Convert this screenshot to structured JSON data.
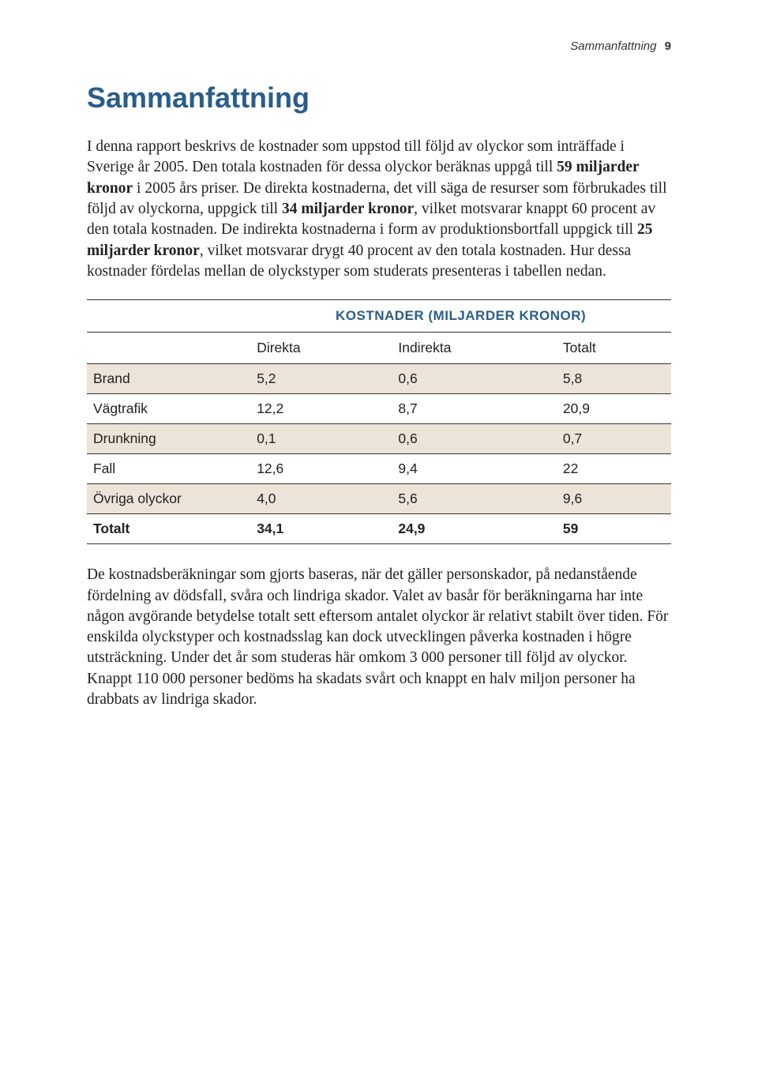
{
  "runningHead": {
    "section": "Sammanfattning",
    "page": "9"
  },
  "heading": "Sammanfattning",
  "para1_a": "I denna rapport beskrivs de kostnader som uppstod till följd av olyckor som inträffade i Sverige år 2005. Den totala kostnaden för dessa olyckor beräknas uppgå till ",
  "para1_b": "59 miljarder kronor",
  "para1_c": " i 2005 års priser. De direkta kostnaderna, det vill säga de resurser som förbrukades till följd av olyckorna, uppgick till ",
  "para1_d": "34 miljarder kronor",
  "para1_e": ", vilket motsvarar knappt 60 procent av den totala kostnaden. De indirekta kostnaderna i form av produktionsbortfall uppgick till ",
  "para1_f": "25 miljarder kronor",
  "para1_g": ", vilket motsvarar drygt 40 procent av den totala kostnaden. Hur dessa kostnader fördelas mellan de olycks­typer som studerats presenteras i tabellen nedan.",
  "table": {
    "title": "KOSTNADER (MILJARDER KRONOR)",
    "columns": [
      "",
      "Direkta",
      "Indirekta",
      "Totalt"
    ],
    "rows": [
      {
        "label": "Brand",
        "direkta": "5,2",
        "indirekta": "0,6",
        "totalt": "5,8",
        "shade": true
      },
      {
        "label": "Vägtrafik",
        "direkta": "12,2",
        "indirekta": "8,7",
        "totalt": "20,9",
        "shade": false
      },
      {
        "label": "Drunkning",
        "direkta": "0,1",
        "indirekta": "0,6",
        "totalt": "0,7",
        "shade": true
      },
      {
        "label": "Fall",
        "direkta": "12,6",
        "indirekta": "9,4",
        "totalt": "22",
        "shade": false
      },
      {
        "label": "Övriga olyckor",
        "direkta": "4,0",
        "indirekta": "5,6",
        "totalt": "9,6",
        "shade": true
      }
    ],
    "total": {
      "label": "Totalt",
      "direkta": "34,1",
      "indirekta": "24,9",
      "totalt": "59"
    },
    "colors": {
      "heading": "#2a5d8a",
      "shade_bg": "#ece4d8",
      "rule": "#333333"
    },
    "font_sizes": {
      "title": 17,
      "cell": 17.5
    }
  },
  "para2": "De kostnadsberäkningar som gjorts baseras, när det gäller person­skador, på nedanstående fördelning av dödsfall, svåra och lindriga skador. Valet av basår för beräkningarna har inte någon avgörande betydelse totalt sett eftersom antalet olyckor är relativt stabilt över tiden. För enskilda olyckstyper och kostnadsslag kan dock utvecklingen påverka kostnaden i högre utsträckning. Under det år som studeras här omkom 3 000 personer till följd av olyckor. Knappt 110 000 personer bedöms ha skadats svårt och knappt en halv miljon personer ha drabbats av lindriga skador."
}
